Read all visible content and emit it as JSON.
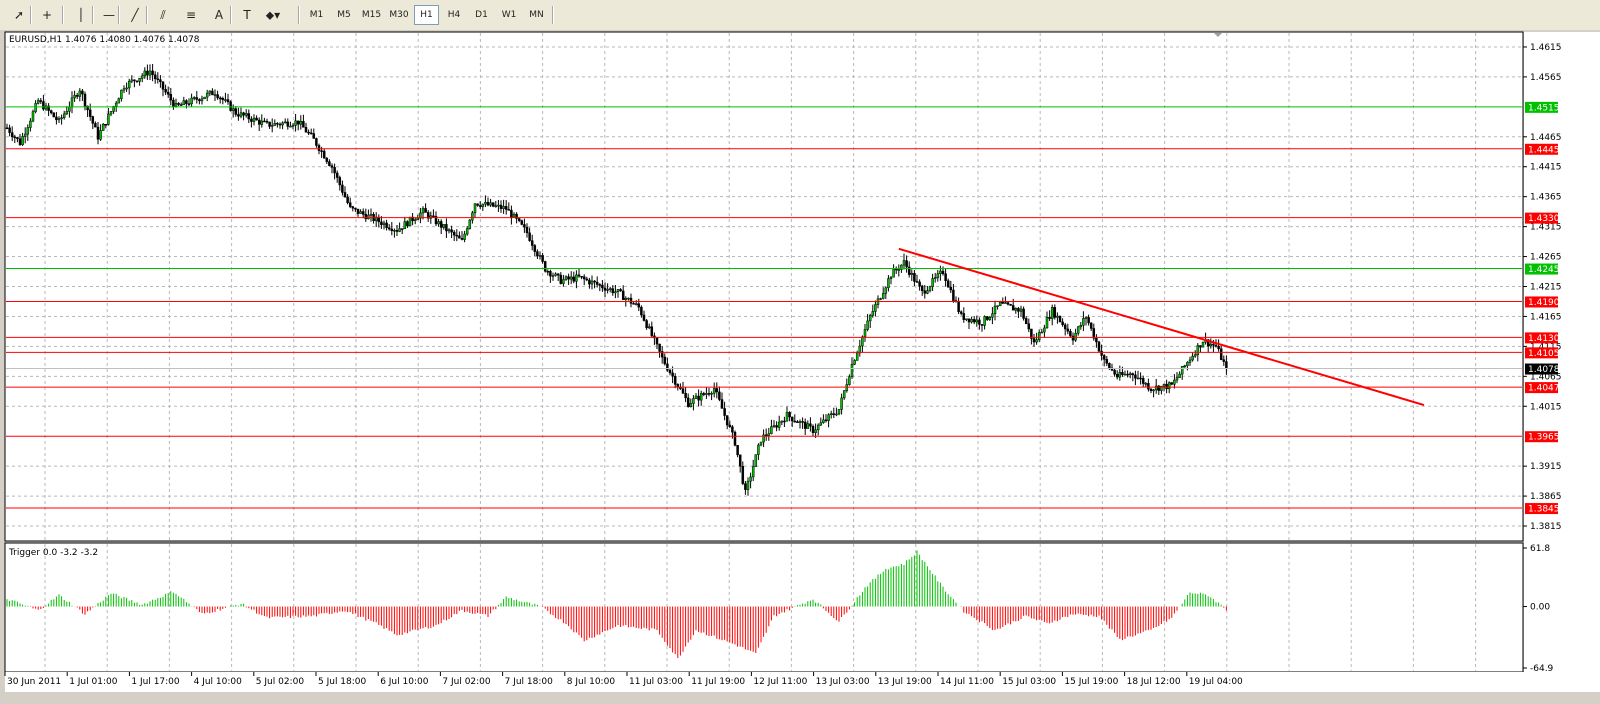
{
  "toolbar": {
    "tools": [
      {
        "name": "cursor-icon",
        "glyph": "➚"
      },
      {
        "name": "crosshair-icon",
        "glyph": "+"
      },
      {
        "name": "vertical-line-icon",
        "glyph": "│"
      },
      {
        "name": "horizontal-line-icon",
        "glyph": "—"
      },
      {
        "name": "trendline-icon",
        "glyph": "╱"
      },
      {
        "name": "equidistant-channel-icon",
        "glyph": "⫽"
      },
      {
        "name": "fibonacci-icon",
        "glyph": "≡"
      },
      {
        "name": "text-icon",
        "glyph": "A"
      },
      {
        "name": "text-label-icon",
        "glyph": "T"
      },
      {
        "name": "shapes-icon",
        "glyph": "⬥▾"
      }
    ],
    "timeframes": [
      "M1",
      "M5",
      "M15",
      "M30",
      "H1",
      "H4",
      "D1",
      "W1",
      "MN"
    ],
    "active_timeframe": "H1"
  },
  "chart_data": [
    {
      "type": "candlestick",
      "title": "EURUSD,H1  1.4076 1.4080 1.4076 1.4078",
      "symbol": "EURUSD",
      "timeframe": "H1",
      "ohlc": {
        "open": 1.4076,
        "high": 1.408,
        "low": 1.4076,
        "close": 1.4078
      },
      "y_ticks": [
        "1.4615",
        "1.4565",
        "1.4465",
        "1.4415",
        "1.4365",
        "1.4315",
        "1.4265",
        "1.4215",
        "1.4165",
        "1.4115",
        "1.4065",
        "1.4015",
        "1.3915",
        "1.3865",
        "1.3815"
      ],
      "ylim": [
        1.3795,
        1.4635
      ],
      "x_ticks": [
        "30 Jun 2011",
        "1 Jul 01:00",
        "1 Jul 17:00",
        "4 Jul 10:00",
        "5 Jul 02:00",
        "5 Jul 18:00",
        "6 Jul 10:00",
        "7 Jul 02:00",
        "7 Jul 18:00",
        "8 Jul 10:00",
        "11 Jul 03:00",
        "11 Jul 19:00",
        "12 Jul 11:00",
        "13 Jul 03:00",
        "13 Jul 19:00",
        "14 Jul 11:00",
        "15 Jul 03:00",
        "15 Jul 19:00",
        "18 Jul 12:00",
        "19 Jul 04:00"
      ],
      "price_path": [
        [
          0,
          1.448
        ],
        [
          5,
          1.4455
        ],
        [
          12,
          1.4525
        ],
        [
          20,
          1.449
        ],
        [
          28,
          1.4545
        ],
        [
          35,
          1.4465
        ],
        [
          45,
          1.455
        ],
        [
          55,
          1.4575
        ],
        [
          65,
          1.4515
        ],
        [
          80,
          1.454
        ],
        [
          88,
          1.4505
        ],
        [
          100,
          1.4485
        ],
        [
          112,
          1.449
        ],
        [
          118,
          1.446
        ],
        [
          125,
          1.4415
        ],
        [
          132,
          1.4345
        ],
        [
          140,
          1.433
        ],
        [
          150,
          1.431
        ],
        [
          160,
          1.434
        ],
        [
          175,
          1.429
        ],
        [
          180,
          1.4355
        ],
        [
          192,
          1.4345
        ],
        [
          200,
          1.4305
        ],
        [
          207,
          1.4245
        ],
        [
          213,
          1.4225
        ],
        [
          220,
          1.423
        ],
        [
          235,
          1.4205
        ],
        [
          243,
          1.418
        ],
        [
          252,
          1.4095
        ],
        [
          262,
          1.402
        ],
        [
          272,
          1.4045
        ],
        [
          280,
          1.3955
        ],
        [
          284,
          1.387
        ],
        [
          290,
          1.396
        ],
        [
          300,
          1.4
        ],
        [
          310,
          1.3975
        ],
        [
          320,
          1.401
        ],
        [
          325,
          1.4085
        ],
        [
          332,
          1.4165
        ],
        [
          340,
          1.4235
        ],
        [
          345,
          1.4255
        ],
        [
          352,
          1.4205
        ],
        [
          360,
          1.424
        ],
        [
          367,
          1.4165
        ],
        [
          375,
          1.4155
        ],
        [
          382,
          1.4185
        ],
        [
          390,
          1.4175
        ],
        [
          395,
          1.412
        ],
        [
          402,
          1.4175
        ],
        [
          410,
          1.413
        ],
        [
          415,
          1.4165
        ],
        [
          422,
          1.409
        ],
        [
          427,
          1.4065
        ],
        [
          433,
          1.407
        ],
        [
          440,
          1.4045
        ],
        [
          448,
          1.405
        ],
        [
          455,
          1.4095
        ],
        [
          460,
          1.4125
        ],
        [
          465,
          1.4115
        ],
        [
          469,
          1.4078
        ]
      ],
      "horizontal_levels": [
        {
          "price": 1.4515,
          "label": "1.4515",
          "color": "#00c000"
        },
        {
          "price": 1.4445,
          "label": "1.4445",
          "color": "#ff0000"
        },
        {
          "price": 1.433,
          "label": "1.4330",
          "color": "#ff0000"
        },
        {
          "price": 1.4245,
          "label": "1.4245",
          "color": "#00c000"
        },
        {
          "price": 1.419,
          "label": "1.4190",
          "color": "#ff0000"
        },
        {
          "price": 1.413,
          "label": "1.4130",
          "color": "#ff0000"
        },
        {
          "price": 1.4105,
          "label": "1.4105",
          "color": "#ff0000"
        },
        {
          "price": 1.4047,
          "label": "1.4047",
          "color": "#ff0000"
        },
        {
          "price": 1.3965,
          "label": "1.3965",
          "color": "#ff0000"
        },
        {
          "price": 1.3845,
          "label": "1.3845",
          "color": "#ff0000"
        }
      ],
      "current_price": {
        "price": 1.4078,
        "label": "1.4078"
      },
      "trendline": {
        "from": {
          "bar": 343,
          "price": 1.4278
        },
        "to": {
          "bar": 545,
          "price": 1.4017
        },
        "color": "#ff0000"
      },
      "grid": true
    },
    {
      "type": "histogram",
      "title": "Trigger 0.0 -3.2 -3.2",
      "y_ticks": [
        "61.8",
        "0.00",
        "-64.9"
      ],
      "ylim": [
        -64.9,
        61.8
      ],
      "positive_color": "#00c000",
      "negative_color": "#ff0000",
      "value_path": [
        [
          0,
          8
        ],
        [
          12,
          -4
        ],
        [
          20,
          12
        ],
        [
          30,
          -8
        ],
        [
          40,
          14
        ],
        [
          52,
          2
        ],
        [
          64,
          16
        ],
        [
          75,
          -8
        ],
        [
          90,
          3
        ],
        [
          100,
          -12
        ],
        [
          118,
          -10
        ],
        [
          130,
          -4
        ],
        [
          142,
          -18
        ],
        [
          150,
          -30
        ],
        [
          165,
          -20
        ],
        [
          175,
          -4
        ],
        [
          185,
          -10
        ],
        [
          192,
          10
        ],
        [
          205,
          0
        ],
        [
          215,
          -18
        ],
        [
          222,
          -36
        ],
        [
          235,
          -20
        ],
        [
          250,
          -25
        ],
        [
          258,
          -55
        ],
        [
          265,
          -25
        ],
        [
          280,
          -40
        ],
        [
          288,
          -50
        ],
        [
          295,
          -10
        ],
        [
          310,
          8
        ],
        [
          320,
          -16
        ],
        [
          330,
          20
        ],
        [
          338,
          40
        ],
        [
          345,
          45
        ],
        [
          350,
          58
        ],
        [
          360,
          20
        ],
        [
          368,
          -5
        ],
        [
          380,
          -25
        ],
        [
          392,
          -10
        ],
        [
          400,
          -18
        ],
        [
          410,
          -8
        ],
        [
          420,
          -10
        ],
        [
          428,
          -35
        ],
        [
          440,
          -25
        ],
        [
          448,
          -12
        ],
        [
          455,
          15
        ],
        [
          462,
          12
        ],
        [
          469,
          -3
        ]
      ]
    }
  ]
}
